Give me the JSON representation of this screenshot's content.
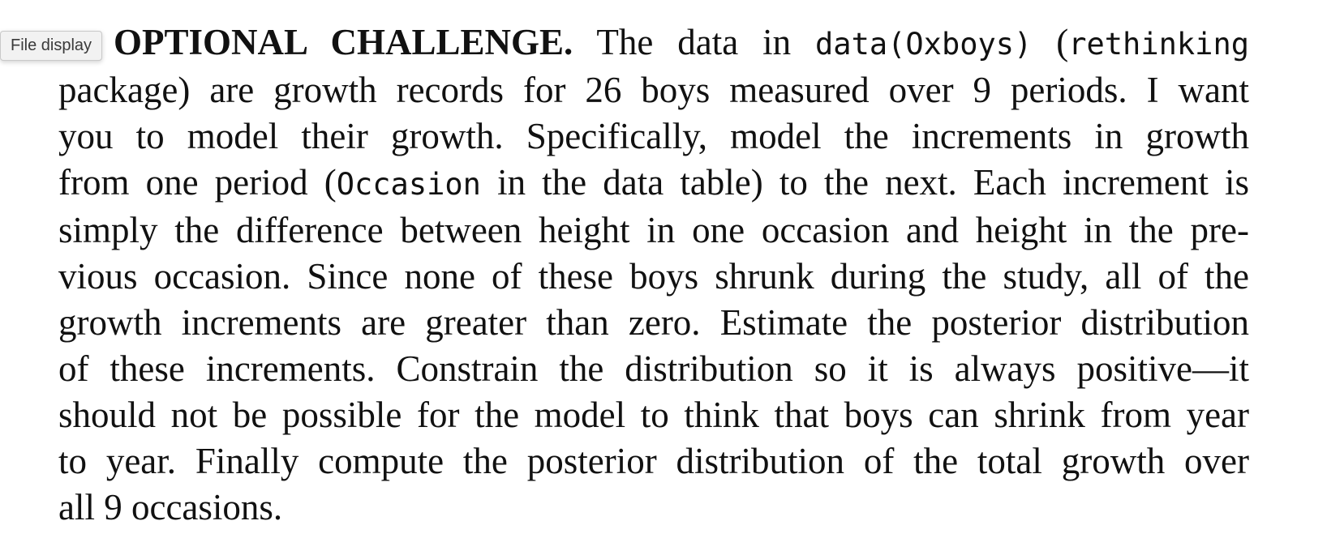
{
  "tooltip": {
    "label": "File display"
  },
  "problem": {
    "lines": [
      [
        "OPTIONAL CHALLENGE.",
        " The data in ",
        "data(Oxboys)",
        " (",
        "rethinking"
      ],
      [
        "package) are growth records for 26 boys measured over 9 periods.  I want"
      ],
      [
        "you to model their growth.  Specifically, model the increments in growth"
      ],
      [
        "from one period (",
        "Occasion",
        " in the data table) to the next. Each increment is"
      ],
      [
        "simply the difference between height in one occasion and height in the pre-"
      ],
      [
        "vious occasion.  Since none of these boys shrunk during the study, all of the"
      ],
      [
        "growth increments are greater than zero. Estimate the posterior distribution"
      ],
      [
        "of these increments.  Constrain the distribution so it is always positive—it"
      ],
      [
        "should not be possible for the model to think that boys can shrink from year"
      ],
      [
        "to year.  Finally compute the posterior distribution of the total growth over"
      ],
      [
        "all 9 occasions."
      ]
    ]
  }
}
